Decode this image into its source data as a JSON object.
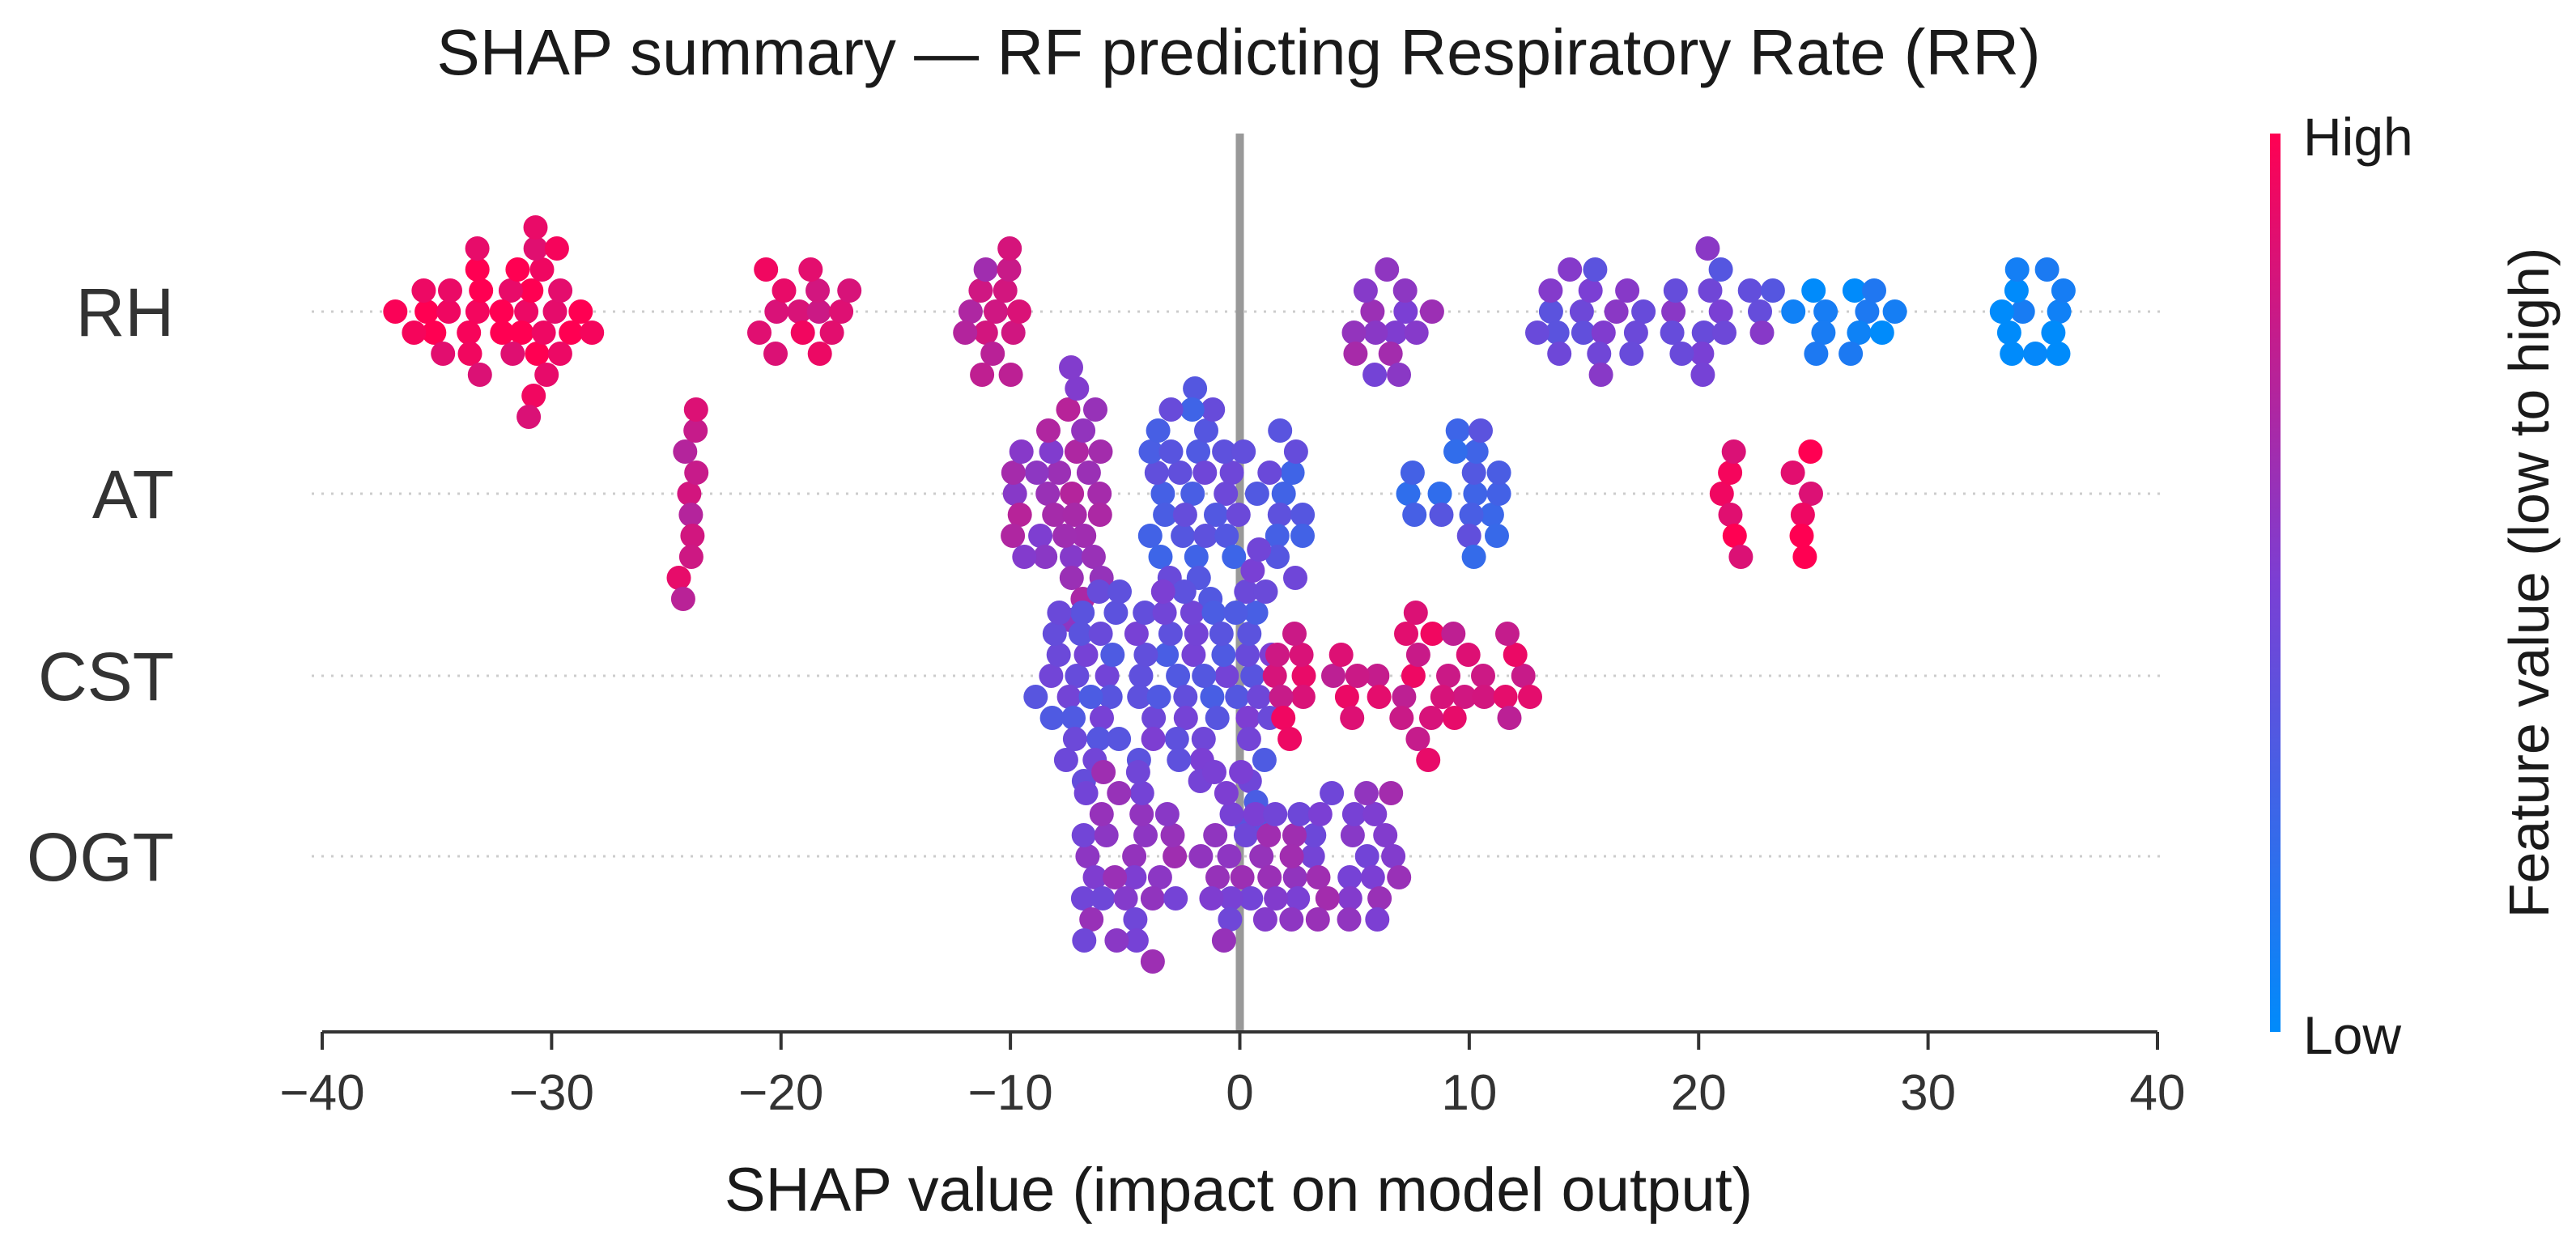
{
  "chart_data": {
    "type": "scatter",
    "subtype": "shap-beeswarm",
    "title": "SHAP summary — RF predicting Respiratory Rate (RR)",
    "xlabel": "SHAP value (impact on model output)",
    "xlim": [
      -40,
      40
    ],
    "xticks": [
      -40,
      -30,
      -20,
      -10,
      0,
      10,
      20,
      30,
      40
    ],
    "xtick_labels": [
      "−40",
      "−30",
      "−20",
      "−10",
      "0",
      "10",
      "20",
      "30",
      "40"
    ],
    "features": [
      "RH",
      "AT",
      "CST",
      "OGT"
    ],
    "zero_line": 0,
    "colorbar": {
      "title": "Feature value (low to high)",
      "high_label": "High",
      "low_label": "Low",
      "low_color": "#008bfb",
      "high_color": "#ff0052"
    },
    "clusters": [
      {
        "feature": "RH",
        "x_min": -37,
        "x_max": -28,
        "count": 38,
        "value": 0.97
      },
      {
        "feature": "RH",
        "x_min": -21,
        "x_max": -17,
        "count": 14,
        "value": 0.85
      },
      {
        "feature": "RH",
        "x_min": -12,
        "x_max": -9,
        "count": 14,
        "value": 0.75
      },
      {
        "feature": "RH",
        "x_min": 4.5,
        "x_max": 8.5,
        "count": 14,
        "value": 0.58
      },
      {
        "feature": "RH",
        "x_min": 12.5,
        "x_max": 23.5,
        "count": 34,
        "value": 0.45
      },
      {
        "feature": "RH",
        "x_min": 24,
        "x_max": 29,
        "count": 12,
        "value": 0.03
      },
      {
        "feature": "RH",
        "x_min": 33,
        "x_max": 36.5,
        "count": 12,
        "value": 0.02
      },
      {
        "feature": "AT",
        "x_min": -24.5,
        "x_max": -23.5,
        "count": 10,
        "value": 0.8
      },
      {
        "feature": "AT",
        "x_min": -10,
        "x_max": -6,
        "count": 34,
        "value": 0.62
      },
      {
        "feature": "AT",
        "x_min": -4,
        "x_max": 3,
        "count": 44,
        "value": 0.35
      },
      {
        "feature": "AT",
        "x_min": 6.5,
        "x_max": 11.5,
        "count": 18,
        "value": 0.3
      },
      {
        "feature": "AT",
        "x_min": 21,
        "x_max": 22,
        "count": 6,
        "value": 0.97
      },
      {
        "feature": "AT",
        "x_min": 24,
        "x_max": 25.5,
        "count": 6,
        "value": 0.97
      },
      {
        "feature": "CST",
        "x_min": -9,
        "x_max": 1.5,
        "count": 80,
        "value": 0.4
      },
      {
        "feature": "CST",
        "x_min": 1.5,
        "x_max": 13,
        "count": 40,
        "value": 0.85
      },
      {
        "feature": "OGT",
        "x_min": -7,
        "x_max": 7,
        "count": 80,
        "value": 0.55
      }
    ]
  }
}
